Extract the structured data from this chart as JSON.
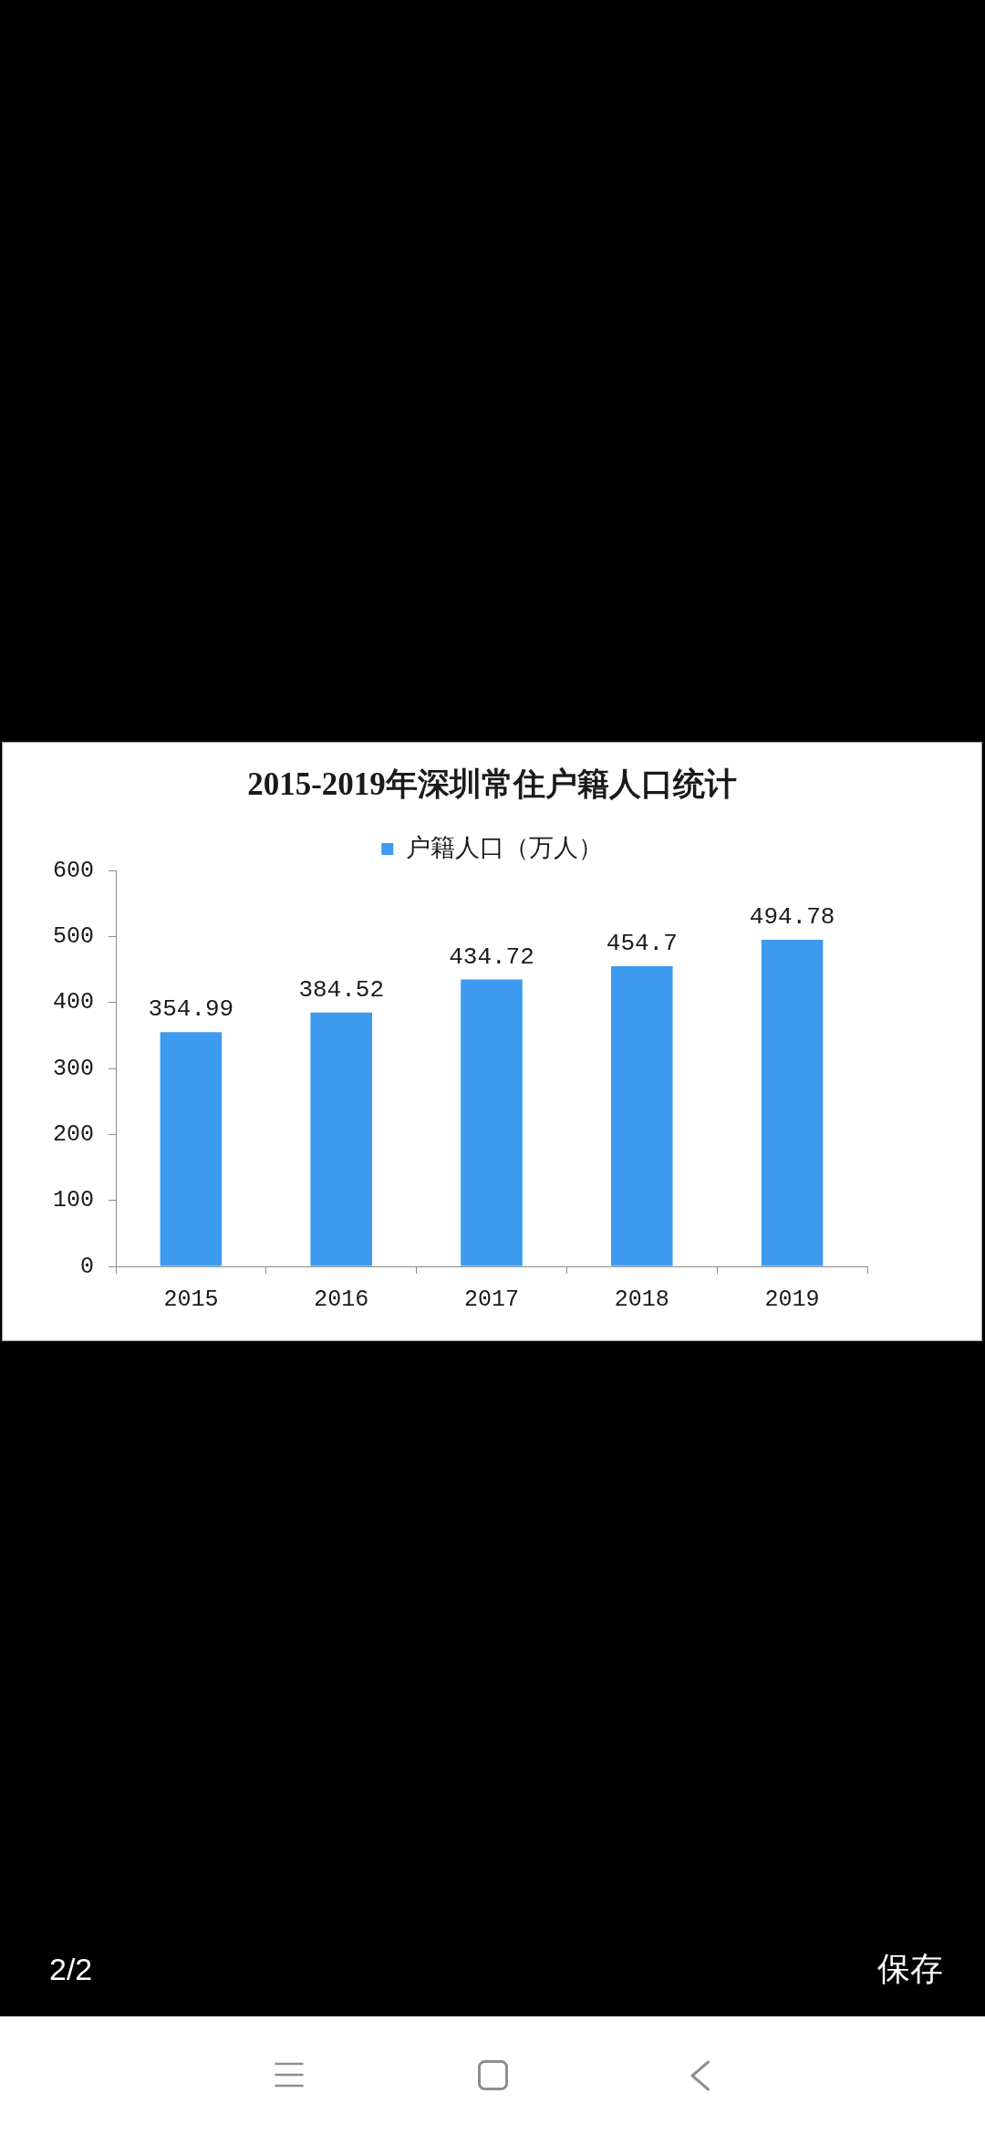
{
  "chart_data": {
    "type": "bar",
    "title": "2015-2019年深圳常住户籍人口统计",
    "categories": [
      "2015",
      "2016",
      "2017",
      "2018",
      "2019"
    ],
    "series": [
      {
        "name": "户籍人口（万人）",
        "color": "#3c9bef",
        "values": [
          354.99,
          384.52,
          434.72,
          454.7,
          494.78
        ]
      }
    ],
    "ylim": [
      0,
      600
    ],
    "yticks": [
      0,
      100,
      200,
      300,
      400,
      500,
      600
    ],
    "grid": false,
    "legend": "top",
    "data_labels": true,
    "annotations": [
      "2/2",
      "保存"
    ]
  }
}
